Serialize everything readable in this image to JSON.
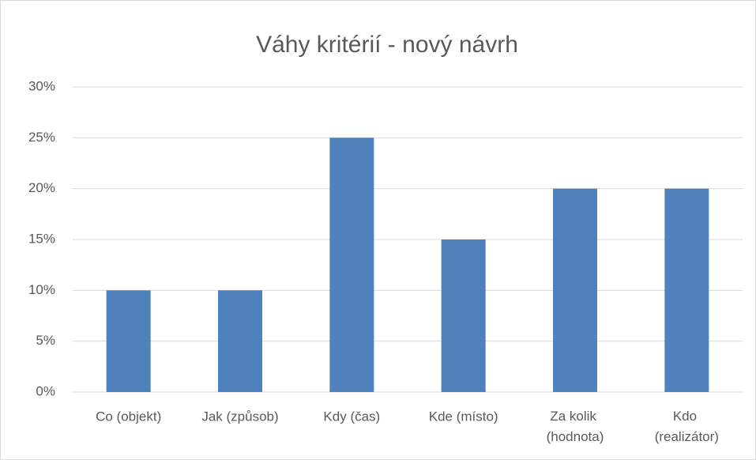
{
  "chart_data": {
    "type": "bar",
    "title": "Váhy kritérií - nový návrh",
    "categories": [
      "Co (objekt)",
      "Jak (způsob)",
      "Kdy (čas)",
      "Kde (místo)",
      "Za kolik (hodnota)",
      "Kdo (realizátor)"
    ],
    "values": [
      10,
      10,
      25,
      15,
      20,
      20
    ],
    "color": "#4f81bd",
    "ylim": [
      0,
      30
    ],
    "yticks": [
      {
        "value": 0,
        "label": "0%"
      },
      {
        "value": 5,
        "label": "5%"
      },
      {
        "value": 10,
        "label": "10%"
      },
      {
        "value": 15,
        "label": "15%"
      },
      {
        "value": 20,
        "label": "20%"
      },
      {
        "value": 25,
        "label": "25%"
      },
      {
        "value": 30,
        "label": "30%"
      }
    ],
    "grid": true
  }
}
